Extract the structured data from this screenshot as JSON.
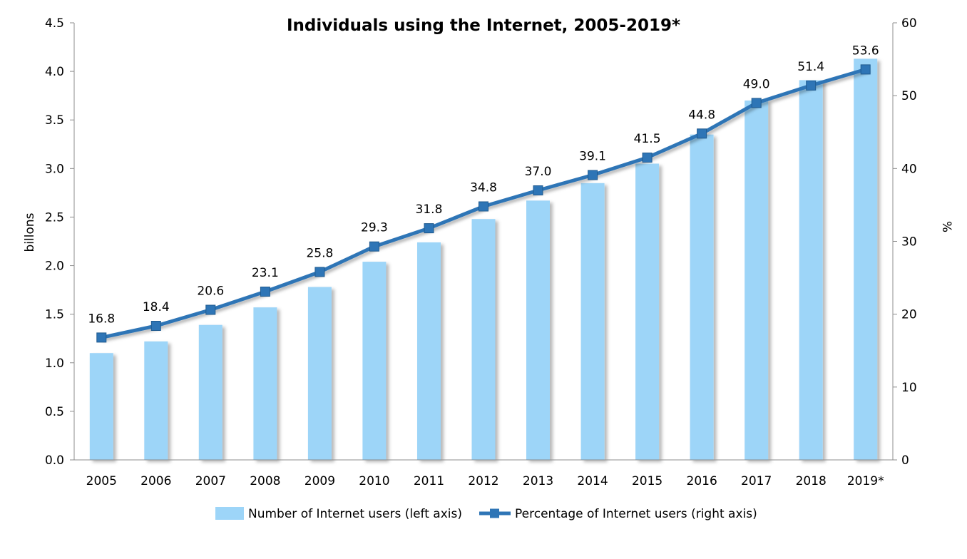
{
  "chart_data": {
    "type": "bar",
    "title": "Individuals using the Internet, 2005-2019*",
    "categories": [
      "2005",
      "2006",
      "2007",
      "2008",
      "2009",
      "2010",
      "2011",
      "2012",
      "2013",
      "2014",
      "2015",
      "2016",
      "2017",
      "2018",
      "2019*"
    ],
    "series": [
      {
        "name": "Number of Internet users (left axis)",
        "type": "bar",
        "axis": "left",
        "color": "#9dd5f8",
        "values": [
          1.1,
          1.22,
          1.39,
          1.57,
          1.78,
          2.04,
          2.24,
          2.48,
          2.67,
          2.85,
          3.05,
          3.35,
          3.7,
          3.91,
          4.13
        ]
      },
      {
        "name": "Percentage of Internet users (right axis)",
        "type": "line",
        "axis": "right",
        "color": "#2e75b6",
        "marker": "square",
        "values": [
          16.8,
          18.4,
          20.6,
          23.1,
          25.8,
          29.3,
          31.8,
          34.8,
          37.0,
          39.1,
          41.5,
          44.8,
          49.0,
          51.4,
          53.6
        ],
        "data_labels": [
          "16.8",
          "18.4",
          "20.6",
          "23.1",
          "25.8",
          "29.3",
          "31.8",
          "34.8",
          "37.0",
          "39.1",
          "41.5",
          "44.8",
          "49.0",
          "51.4",
          "53.6"
        ]
      }
    ],
    "left_axis": {
      "label": "billons",
      "range": [
        0,
        4.5
      ],
      "ticks": [
        "0.0",
        "0.5",
        "1.0",
        "1.5",
        "2.0",
        "2.5",
        "3.0",
        "3.5",
        "4.0",
        "4.5"
      ]
    },
    "right_axis": {
      "label": "%",
      "range": [
        0,
        60
      ],
      "ticks": [
        "0",
        "10",
        "20",
        "30",
        "40",
        "50",
        "60"
      ]
    },
    "grid": false,
    "legend_position": "bottom"
  }
}
